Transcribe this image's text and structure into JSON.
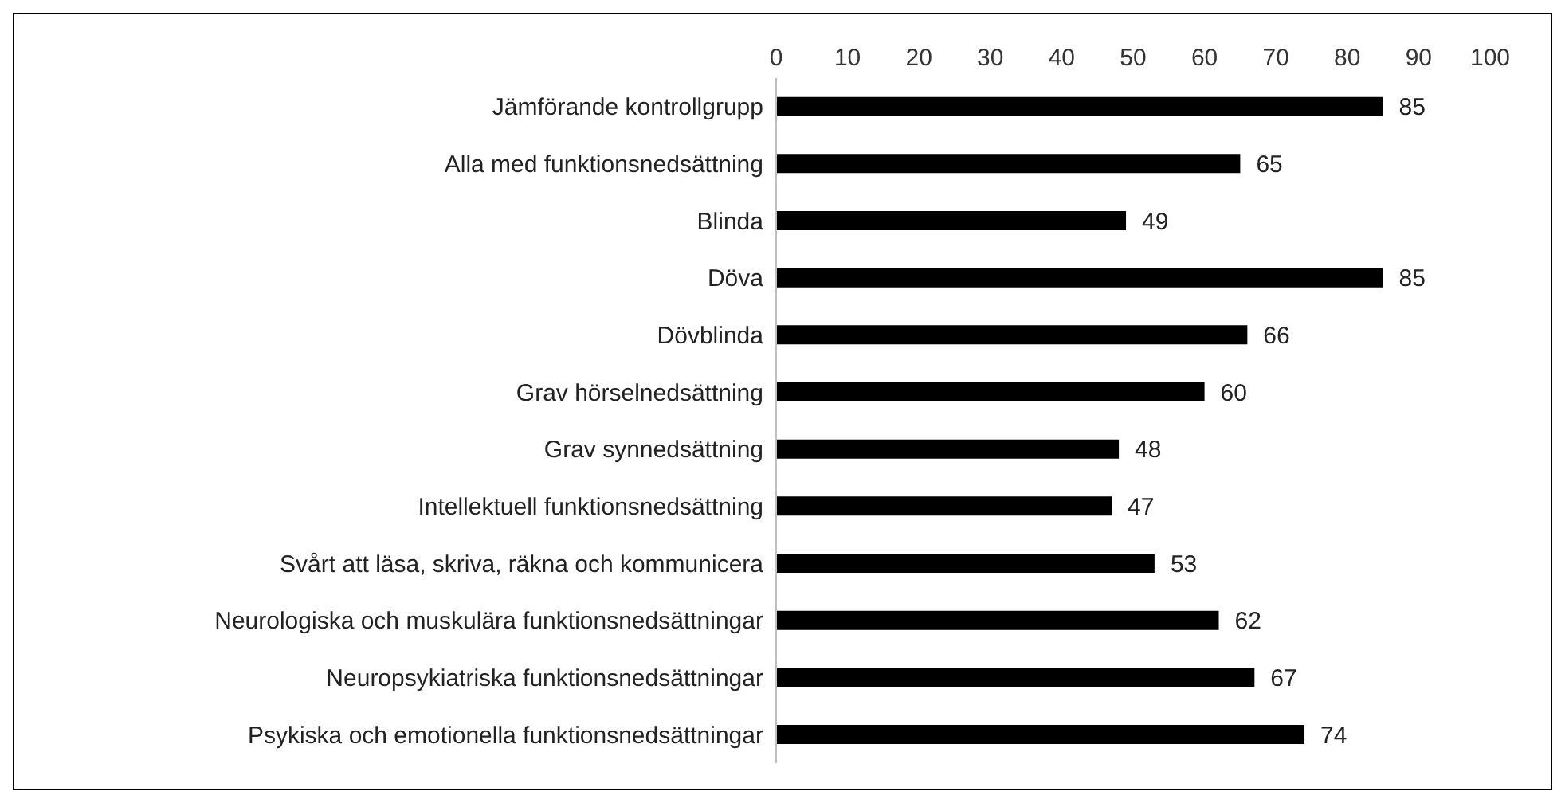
{
  "chart_data": {
    "type": "bar",
    "orientation": "horizontal",
    "categories": [
      "Jämförande kontrollgrupp",
      "Alla med funktionsnedsättning",
      "Blinda",
      "Döva",
      "Dövblinda",
      "Grav hörselnedsättning",
      "Grav synnedsättning",
      "Intellektuell funktionsnedsättning",
      "Svårt att läsa, skriva, räkna och kommunicera",
      "Neurologiska och muskulära funktionsnedsättningar",
      "Neuropsykiatriska funktionsnedsättningar",
      "Psykiska och emotionella funktionsnedsättningar"
    ],
    "values": [
      85,
      65,
      49,
      85,
      66,
      60,
      48,
      47,
      53,
      62,
      67,
      74
    ],
    "color": "#000000",
    "xlim": [
      0,
      100
    ],
    "xticks": [
      0,
      10,
      20,
      30,
      40,
      50,
      60,
      70,
      80,
      90,
      100
    ],
    "data_labels": true,
    "grid": false,
    "legend": false
  }
}
